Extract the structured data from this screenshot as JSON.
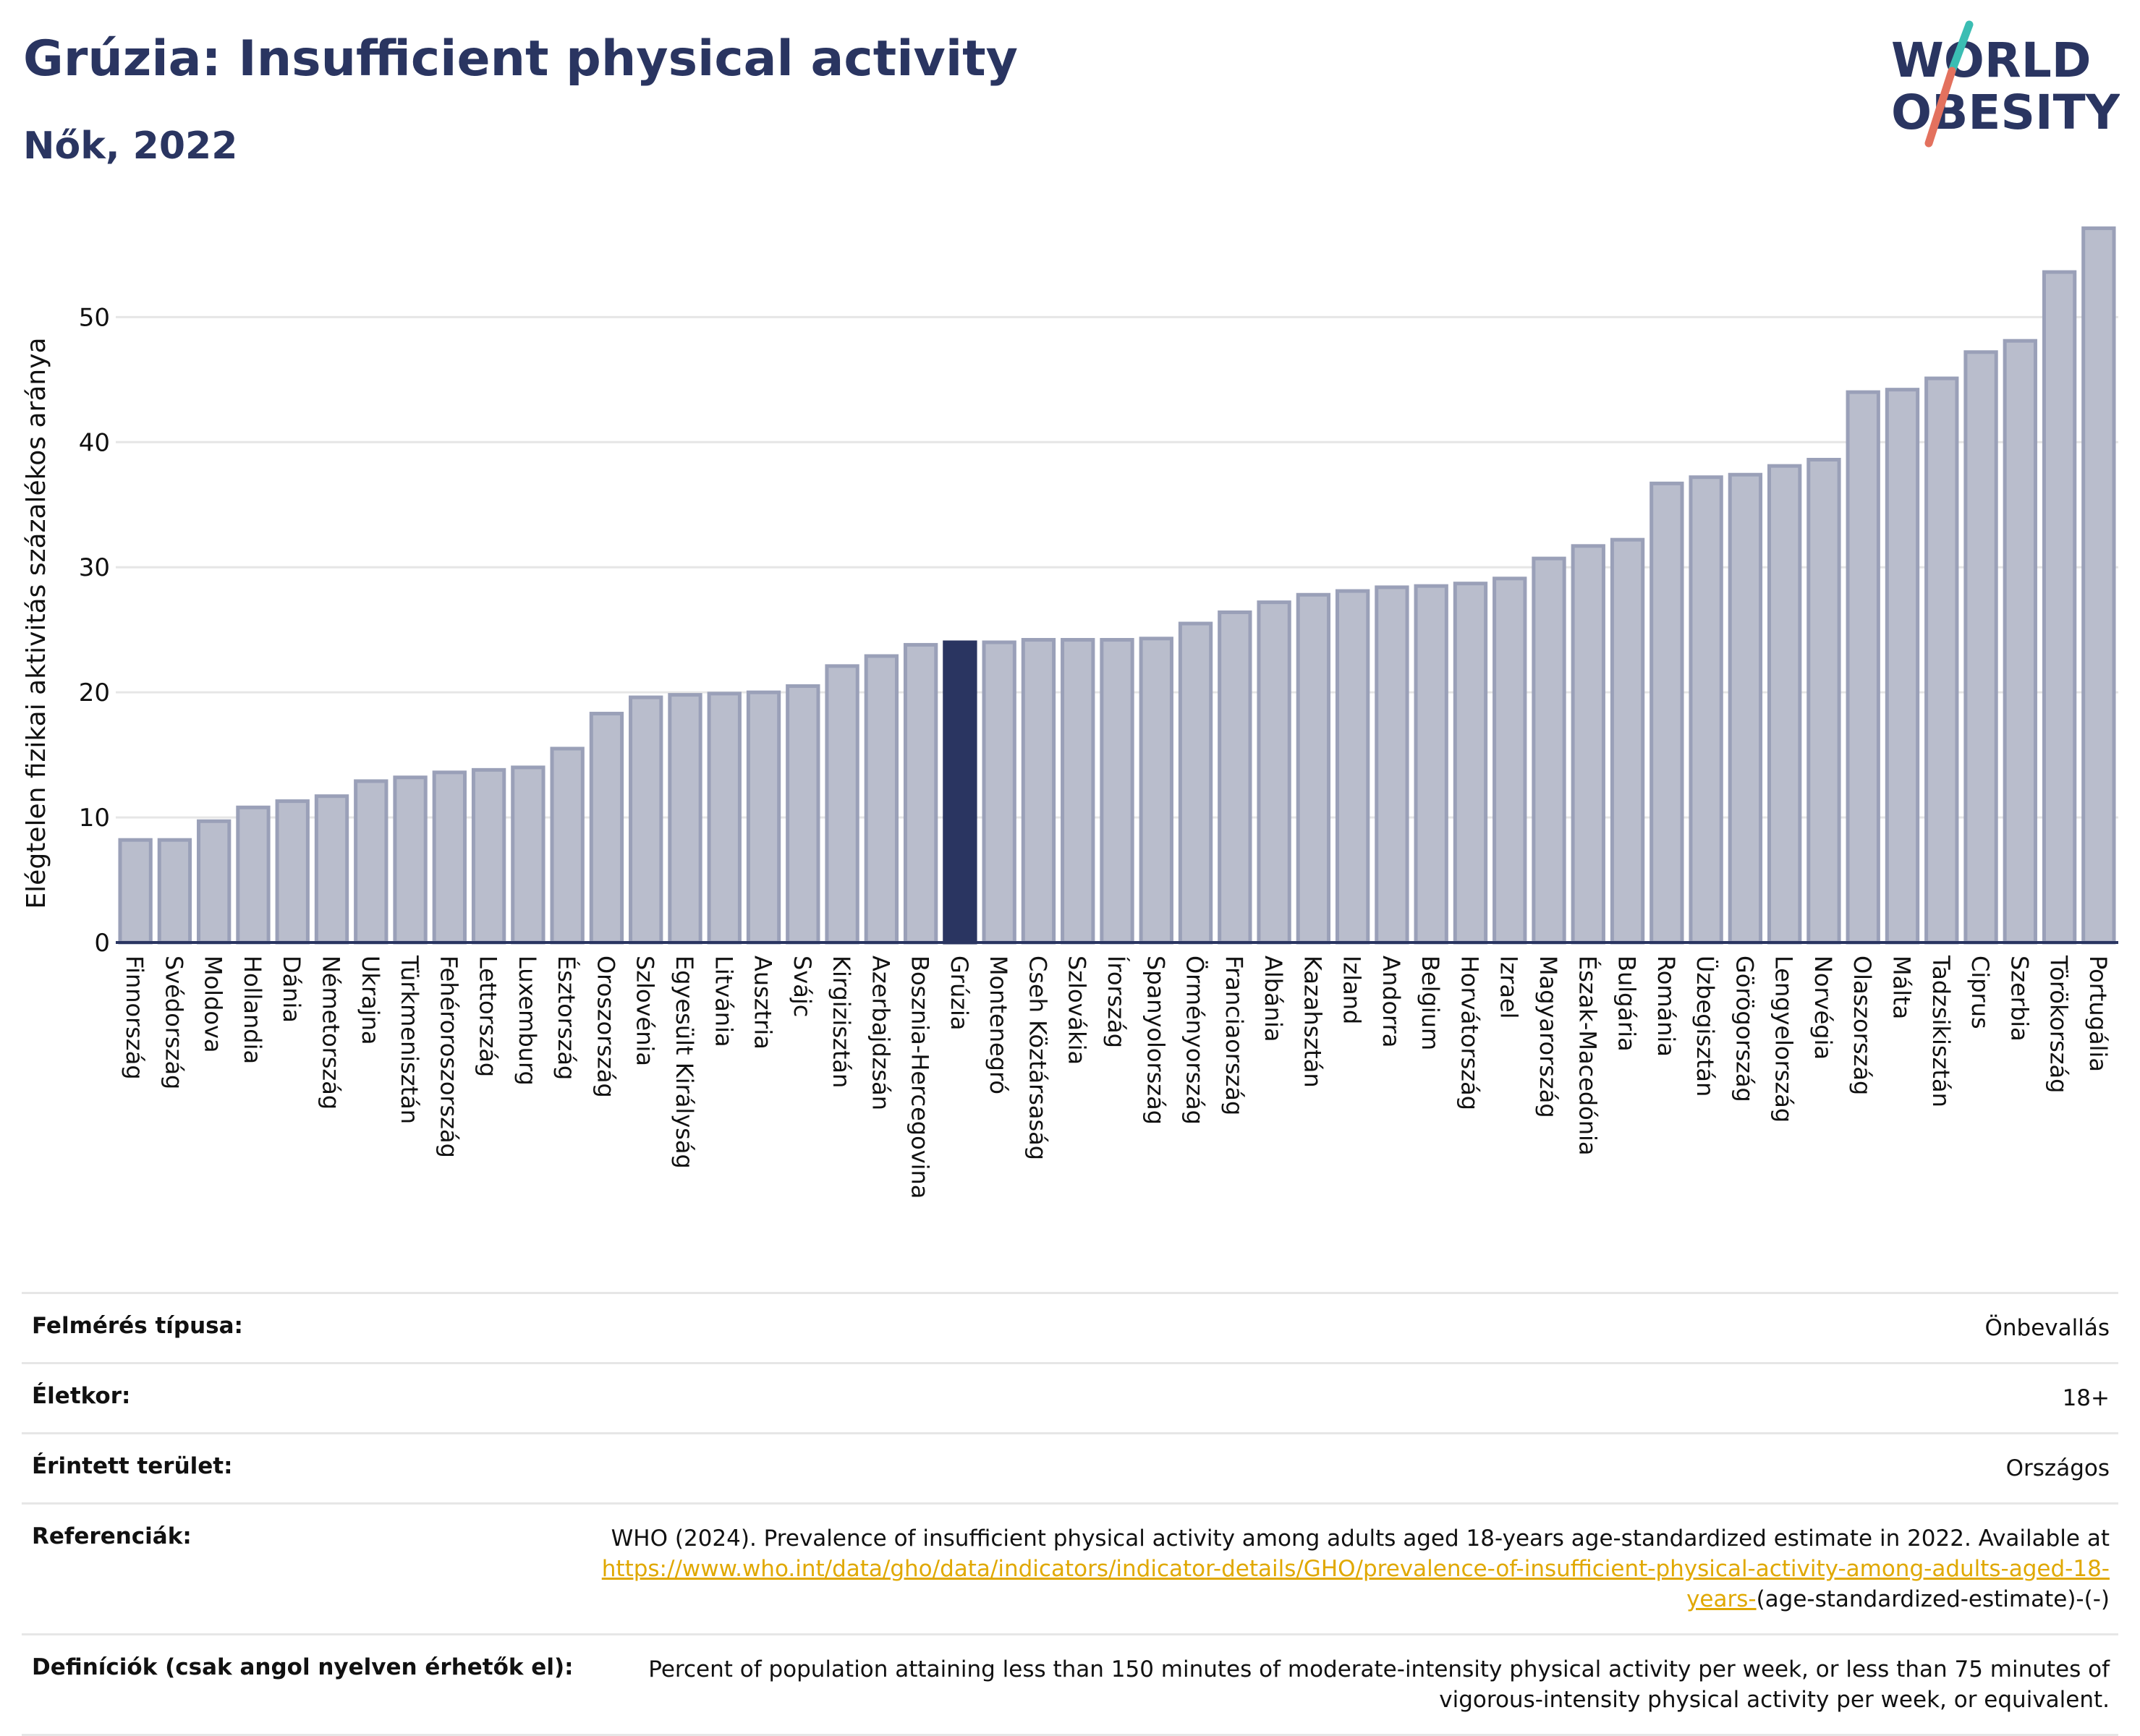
{
  "header": {
    "title": "Grúzia: Insufficient physical activity",
    "subtitle": "Nők, 2022"
  },
  "logo": {
    "line1": "WORLD",
    "line2": "OBESITY"
  },
  "chart_data": {
    "type": "bar",
    "ylabel": "Elégtelen fizikai aktivitás százalékos aránya",
    "xlabel": "",
    "ylim": [
      0,
      58
    ],
    "yticks": [
      0,
      10,
      20,
      30,
      40,
      50
    ],
    "grid": true,
    "highlight": "Grúzia",
    "colors": {
      "bar": "#b9bdcc",
      "bar_stroke": "#9aa0b8",
      "highlight": "#2a3561",
      "grid": "#e6e6e6",
      "axis": "#2a3561"
    },
    "categories": [
      "Finnország",
      "Svédország",
      "Moldova",
      "Hollandia",
      "Dánia",
      "Németország",
      "Ukrajna",
      "Türkmenisztán",
      "Fehéroroszország",
      "Lettország",
      "Luxemburg",
      "Észtország",
      "Oroszország",
      "Szlovénia",
      "Egyesült Királyság",
      "Litvánia",
      "Ausztria",
      "Svájc",
      "Kirgizisztán",
      "Azerbajdzsán",
      "Bosznia-Hercegovina",
      "Grúzia",
      "Montenegró",
      "Cseh Köztársaság",
      "Szlovákia",
      "Írország",
      "Spanyolország",
      "Örményország",
      "Franciaország",
      "Albánia",
      "Kazahsztán",
      "Izland",
      "Andorra",
      "Belgium",
      "Horvátország",
      "Izrael",
      "Magyarország",
      "Észak-Macedónia",
      "Bulgária",
      "Románia",
      "Üzbegisztán",
      "Görögország",
      "Lengyelország",
      "Norvégia",
      "Olaszország",
      "Málta",
      "Tadzsikisztán",
      "Ciprus",
      "Szerbia",
      "Törökország",
      "Portugália"
    ],
    "values": [
      8.2,
      8.2,
      9.7,
      10.8,
      11.3,
      11.7,
      12.9,
      13.2,
      13.6,
      13.8,
      14.0,
      15.5,
      18.3,
      19.6,
      19.8,
      19.9,
      20.0,
      20.5,
      22.1,
      22.9,
      23.8,
      24.0,
      24.0,
      24.2,
      24.2,
      24.2,
      24.3,
      25.5,
      26.4,
      27.2,
      27.8,
      28.1,
      28.4,
      28.5,
      28.7,
      29.1,
      30.7,
      31.7,
      32.2,
      36.7,
      37.2,
      37.4,
      38.1,
      38.6,
      44.0,
      44.2,
      45.1,
      47.2,
      48.1,
      53.6,
      57.1
    ]
  },
  "meta": {
    "survey_label": "Felmérés típusa:",
    "survey_value": "Önbevallás",
    "age_label": "Életkor:",
    "age_value": "18+",
    "area_label": "Érintett terület:",
    "area_value": "Országos",
    "ref_label": "Referenciák:",
    "ref_text": "WHO (2024). Prevalence of insufficient physical activity among adults aged 18-years age-standardized estimate in 2022. Available at",
    "ref_link": "https://www.who.int/data/gho/data/indicators/indicator-details/GHO/prevalence-of-insufficient-physical-activity-among-adults-aged-18-years-",
    "ref_suffix": "(age-standardized-estimate)-(-)",
    "def_label": "Definíciók (csak angol nyelven érhetők el):",
    "def_value": "Percent of population attaining less than 150 minutes of moderate-intensity physical activity per week, or less than 75 minutes of vigorous-intensity physical activity per week, or equivalent."
  }
}
